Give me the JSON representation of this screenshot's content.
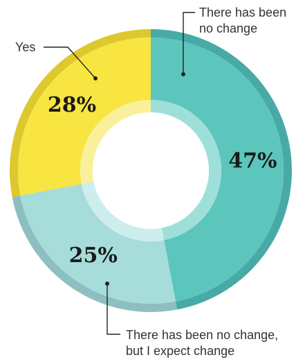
{
  "chart_data": {
    "type": "pie",
    "donut": true,
    "categories": [
      "There has been no change",
      "There has been no change, but I expect change",
      "Yes"
    ],
    "values": [
      47,
      25,
      28
    ],
    "value_labels": [
      "47%",
      "25%",
      "28%"
    ],
    "colors": {
      "face": [
        "#5cc6bd",
        "#a6dcda",
        "#f8e542"
      ],
      "rim": [
        "#48aaa6",
        "#8dbfc0",
        "#ddc82e"
      ],
      "inner_ring": [
        "#9edfda",
        "#cdeeed",
        "#fbf09a"
      ]
    },
    "title": "",
    "legend": "callouts"
  },
  "callouts": {
    "no_change": {
      "line1": "There has been",
      "line2": "no change"
    },
    "expect_change": {
      "line1": "There has been no change,",
      "line2": "but I expect change"
    },
    "yes": {
      "line1": "Yes"
    }
  }
}
